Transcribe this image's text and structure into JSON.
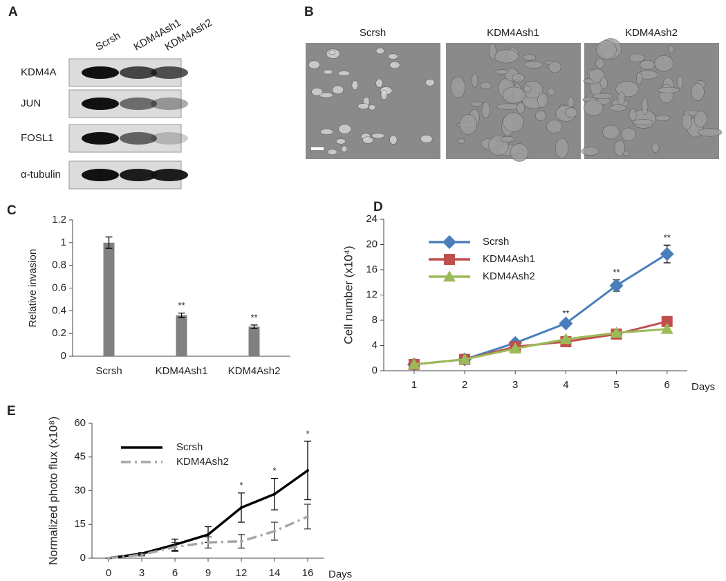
{
  "panel_a": {
    "label": "A",
    "lanes": [
      "Scrsh",
      "KDM4Ash1",
      "KDM4Ash2"
    ],
    "rows": [
      "KDM4A",
      "JUN",
      "FOSL1",
      "α-tubulin"
    ]
  },
  "panel_b": {
    "label": "B",
    "images": [
      "Scrsh",
      "KDM4Ash1",
      "KDM4Ash2"
    ]
  },
  "chart_data": [
    {
      "type": "bar",
      "panel_label": "C",
      "y_label": "Relative invasion",
      "categories": [
        "Scrsh",
        "KDM4Ash1",
        "KDM4Ash2"
      ],
      "values": [
        1.0,
        0.36,
        0.26
      ],
      "errors": [
        0.05,
        0.02,
        0.015
      ],
      "significance": [
        null,
        "**",
        "**"
      ],
      "color": "#808080",
      "ylim": [
        0,
        1.2
      ],
      "yticks": [
        0,
        0.2,
        0.4,
        0.6,
        0.8,
        1,
        1.2
      ]
    },
    {
      "type": "line",
      "panel_label": "D",
      "y_label": "Cell number (x10⁴)",
      "x_label": "Days",
      "x": [
        1,
        2,
        3,
        4,
        5,
        6
      ],
      "xlim": [
        0.4,
        6.4
      ],
      "xticks": [
        1,
        2,
        3,
        4,
        5,
        6
      ],
      "ylim": [
        0,
        24
      ],
      "yticks": [
        0,
        4,
        8,
        12,
        16,
        20,
        24
      ],
      "series": [
        {
          "name": "Scrsh",
          "color": "#4a7ebb",
          "marker": "diamond",
          "values": [
            1,
            1.8,
            4.4,
            7.5,
            13.5,
            18.5
          ],
          "errors": [
            0.1,
            0.2,
            0.3,
            0.4,
            0.9,
            1.4
          ]
        },
        {
          "name": "KDM4Ash1",
          "color": "#c0504d",
          "marker": "square",
          "values": [
            1,
            1.8,
            3.8,
            4.6,
            5.8,
            7.8
          ]
        },
        {
          "name": "KDM4Ash2",
          "color": "#9bbb59",
          "marker": "triangle",
          "values": [
            1,
            1.8,
            3.5,
            5.0,
            6.0,
            6.6
          ]
        }
      ],
      "significance": [
        null,
        null,
        null,
        "**",
        "**",
        "**"
      ]
    },
    {
      "type": "line",
      "panel_label": "E",
      "y_label": "Normalized photo flux (x10⁸)",
      "x_label": "Days",
      "categories": [
        "0",
        "3",
        "6",
        "9",
        "12",
        "14",
        "16"
      ],
      "ylim": [
        0,
        60
      ],
      "yticks": [
        0,
        15,
        30,
        45,
        60
      ],
      "series": [
        {
          "name": "Scrsh",
          "color": "#000000",
          "line_style": "solid",
          "values": [
            0,
            2,
            6,
            10.5,
            22.5,
            28.5,
            39
          ],
          "errors": [
            0,
            0.5,
            2.5,
            3.5,
            6.5,
            7,
            13
          ]
        },
        {
          "name": "KDM4Ash2",
          "color": "#a6a6a6",
          "line_style": "dashdot",
          "values": [
            0,
            1.5,
            5,
            7,
            7.5,
            12,
            18.5
          ],
          "errors": [
            0,
            0.5,
            2,
            2.5,
            3,
            4,
            5.5
          ]
        }
      ],
      "significance": [
        null,
        null,
        null,
        null,
        "*",
        "*",
        "*"
      ]
    }
  ]
}
